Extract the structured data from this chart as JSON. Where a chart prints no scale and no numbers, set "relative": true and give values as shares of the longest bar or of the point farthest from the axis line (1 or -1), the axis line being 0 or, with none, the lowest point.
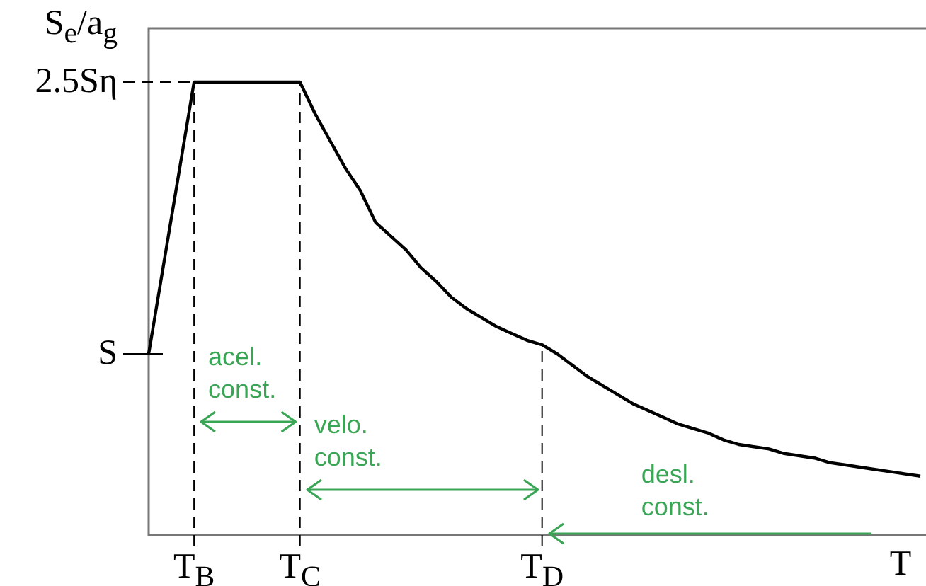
{
  "chart_data": {
    "type": "line",
    "ylabel": "S$_{e}$/a$_{g}$",
    "xlabel": "T",
    "relative": true,
    "categories": [
      null,
      null,
      null,
      "T$_{B}$",
      null,
      null,
      null,
      null,
      null,
      null,
      "T$_{C}$",
      null,
      null,
      null,
      null,
      null,
      null,
      null,
      null,
      null,
      null,
      null,
      null,
      null,
      null,
      null,
      "T$_{D}$",
      null,
      null,
      null,
      null,
      null,
      null,
      null,
      null,
      null,
      null,
      null,
      null,
      null,
      null,
      null,
      null,
      null,
      null,
      null,
      null,
      null,
      null,
      null,
      null,
      null
    ],
    "series": [
      {
        "color": "#000000",
        "values": [
          0.4,
          0.6,
          0.8,
          1,
          1,
          1,
          1,
          1,
          1,
          1,
          1,
          0.93,
          0.87,
          0.81,
          0.76,
          0.69,
          0.66,
          0.63,
          0.59,
          0.56,
          0.525,
          0.5,
          0.48,
          0.46,
          0.445,
          0.43,
          0.42,
          0.4,
          0.375,
          0.35,
          0.33,
          0.31,
          0.29,
          0.275,
          0.26,
          0.245,
          0.235,
          0.225,
          0.21,
          0.2,
          0.195,
          0.19,
          0.18,
          0.175,
          0.17,
          0.16,
          0.155,
          0.15,
          0.145,
          0.14,
          0.135,
          0.13
        ]
      }
    ],
    "ref_lines": [
      {
        "axis": "x",
        "value": "T$_{B}$",
        "line_style": "dashed"
      },
      {
        "axis": "x",
        "value": "T$_{C}$",
        "line_style": "dashed"
      },
      {
        "axis": "x",
        "value": "T$_{D}$",
        "line_style": "dashed"
      },
      {
        "axis": "y",
        "value": 1,
        "label": "2.5Sη",
        "line_style": "dashed"
      },
      {
        "axis": "y",
        "value": 0.4,
        "label": "S",
        "line_style": "solid"
      }
    ],
    "annotations": [
      "acel.\nconst.",
      "velo.\nconst.",
      "desl.\nconst."
    ],
    "legend": false,
    "marker": "none",
    "line_style": "solid"
  }
}
